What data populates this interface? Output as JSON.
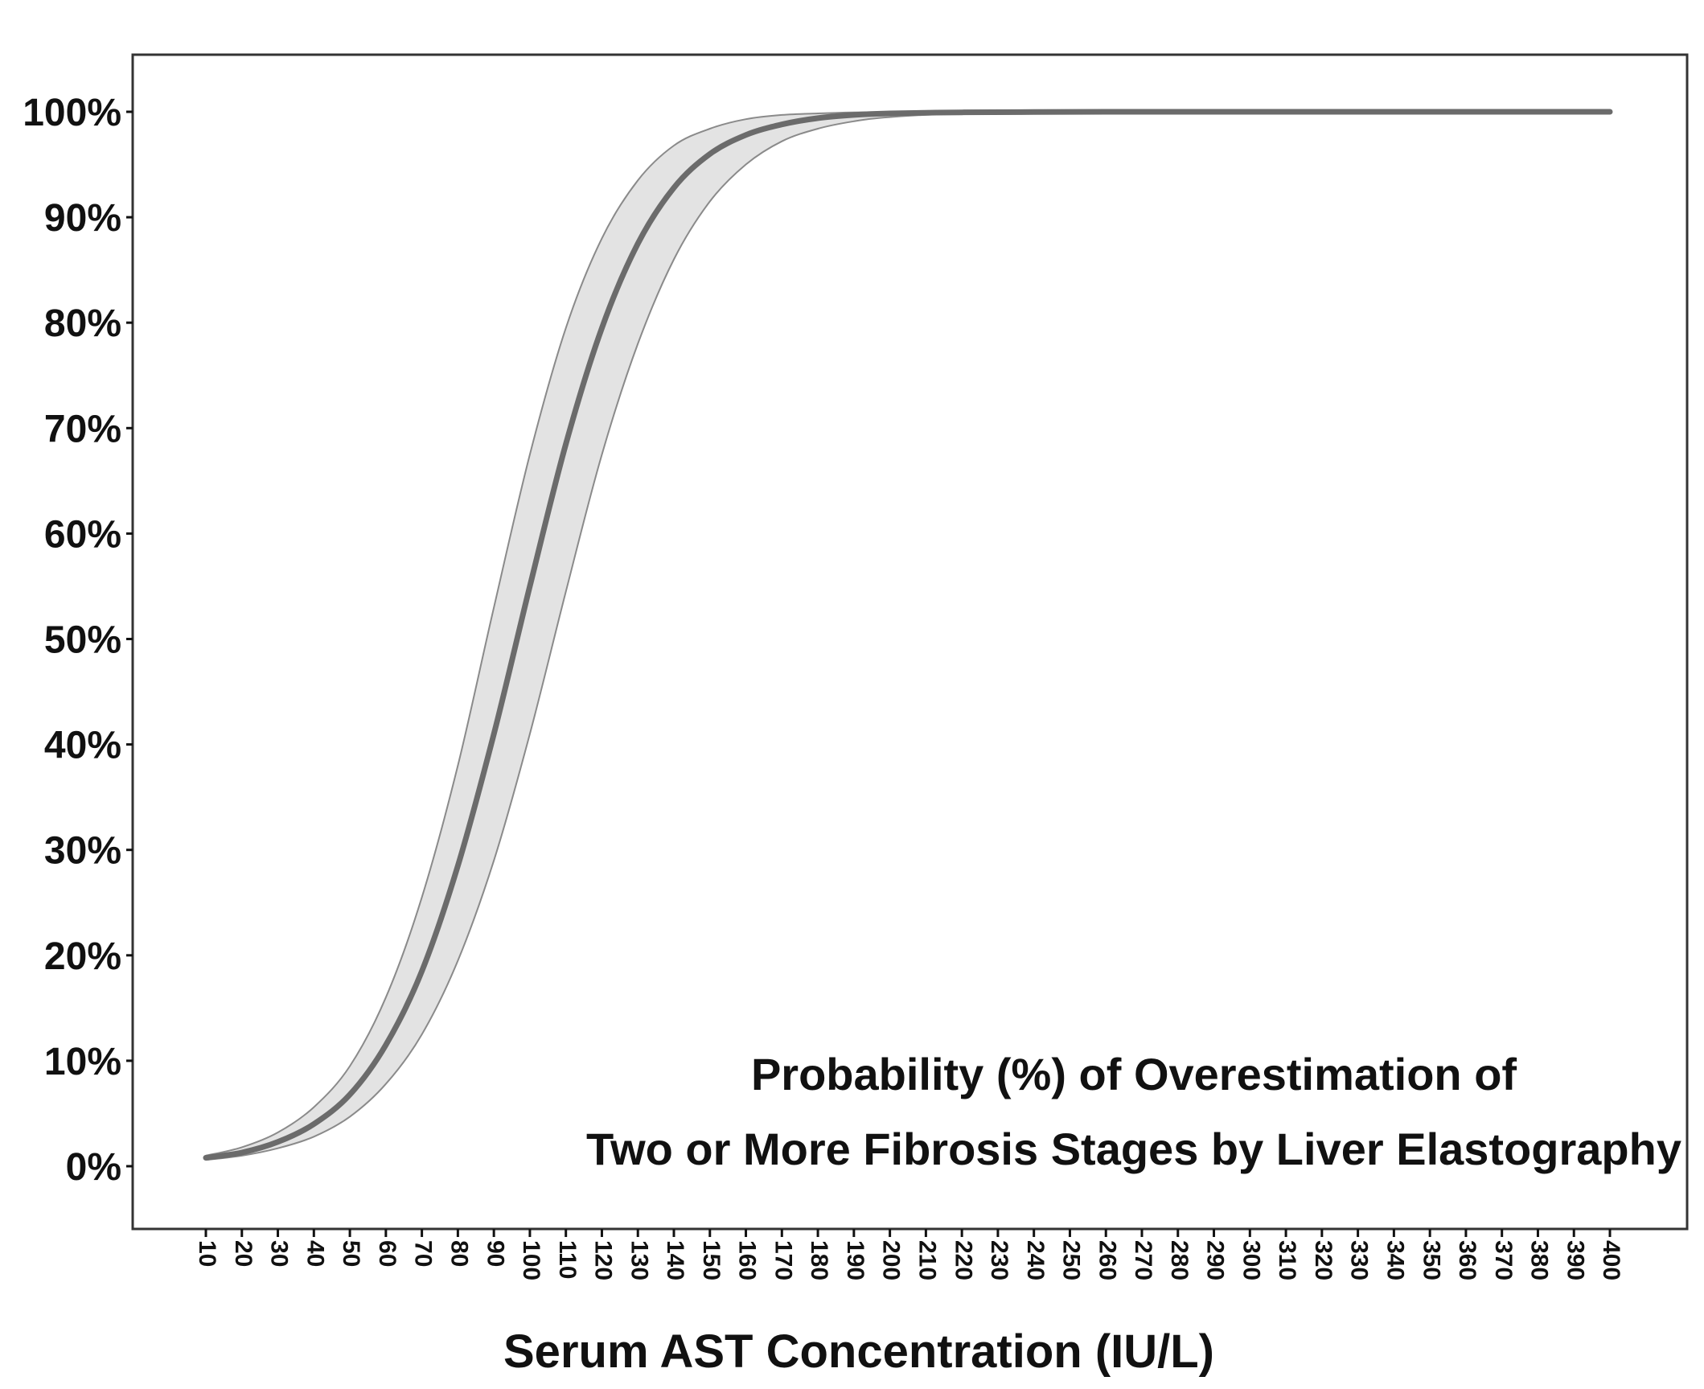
{
  "chart_data": {
    "type": "line",
    "title": "",
    "annotation_lines": [
      "Probability (%) of Overestimation of",
      "Two or More Fibrosis Stages by Liver Elastography"
    ],
    "xlabel": "Serum AST Concentration (IU/L)",
    "ylabel": "",
    "xlim": [
      10,
      400
    ],
    "ylim": [
      0,
      100
    ],
    "x_ticks": [
      10,
      20,
      30,
      40,
      50,
      60,
      70,
      80,
      90,
      100,
      110,
      120,
      130,
      140,
      150,
      160,
      170,
      180,
      190,
      200,
      210,
      220,
      230,
      240,
      250,
      260,
      270,
      280,
      290,
      300,
      310,
      320,
      330,
      340,
      350,
      360,
      370,
      380,
      390,
      400
    ],
    "y_ticks": [
      0,
      10,
      20,
      30,
      40,
      50,
      60,
      70,
      80,
      90,
      100
    ],
    "y_tick_labels": [
      "0%",
      "10%",
      "20%",
      "30%",
      "40%",
      "50%",
      "60%",
      "70%",
      "80%",
      "90%",
      "100%"
    ],
    "grid": false,
    "legend": "none",
    "colors": {
      "line": "#6b6b6b",
      "band_fill": "#e3e3e3",
      "band_edge": "#8a8a8a",
      "frame": "#333333"
    },
    "series": [
      {
        "role": "estimate",
        "x": [
          10,
          20,
          30,
          40,
          50,
          60,
          70,
          80,
          90,
          100,
          110,
          120,
          130,
          140,
          150,
          160,
          170,
          180,
          190,
          200,
          220,
          240,
          260,
          280,
          300,
          320,
          340,
          360,
          380,
          400
        ],
        "y": [
          0.8,
          1.3,
          2.3,
          4.0,
          6.8,
          11.5,
          18.5,
          28.5,
          41.0,
          55.0,
          68.5,
          79.5,
          87.5,
          92.8,
          96.0,
          97.8,
          98.8,
          99.4,
          99.7,
          99.85,
          99.95,
          99.98,
          100,
          100,
          100,
          100,
          100,
          100,
          100,
          100
        ]
      },
      {
        "role": "ci_upper",
        "x": [
          10,
          20,
          30,
          40,
          50,
          60,
          70,
          80,
          90,
          100,
          110,
          120,
          130,
          140,
          150,
          160,
          170,
          180,
          190,
          200,
          220,
          240,
          260,
          280,
          300,
          320,
          340,
          360,
          380,
          400
        ],
        "y": [
          1.0,
          1.8,
          3.2,
          5.6,
          9.5,
          16.0,
          25.5,
          38.0,
          53.0,
          67.5,
          79.5,
          88.0,
          93.5,
          96.8,
          98.4,
          99.3,
          99.7,
          99.85,
          99.95,
          99.98,
          100,
          100,
          100,
          100,
          100,
          100,
          100,
          100,
          100,
          100
        ]
      },
      {
        "role": "ci_lower",
        "x": [
          10,
          20,
          30,
          40,
          50,
          60,
          70,
          80,
          90,
          100,
          110,
          120,
          130,
          140,
          150,
          160,
          170,
          180,
          190,
          200,
          220,
          240,
          260,
          280,
          300,
          320,
          340,
          360,
          380,
          400
        ],
        "y": [
          0.6,
          1.0,
          1.7,
          2.8,
          4.7,
          7.8,
          12.5,
          19.5,
          29.0,
          41.0,
          54.5,
          67.5,
          78.0,
          86.0,
          91.5,
          95.0,
          97.2,
          98.4,
          99.1,
          99.5,
          99.85,
          99.95,
          99.98,
          100,
          100,
          100,
          100,
          100,
          100,
          100
        ]
      }
    ]
  }
}
